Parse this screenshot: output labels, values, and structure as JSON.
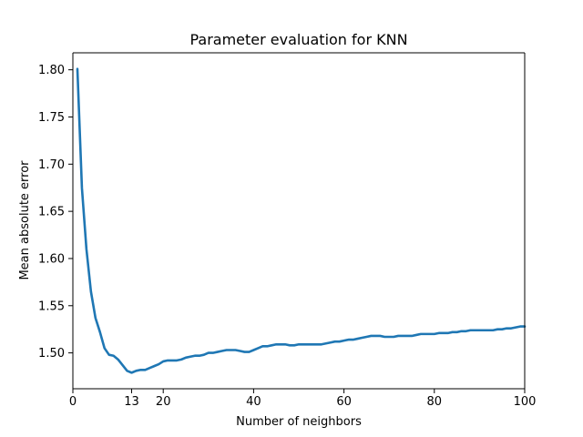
{
  "chart_data": {
    "type": "line",
    "title": "Parameter evaluation for KNN",
    "xlabel": "Number of neighbors",
    "ylabel": "Mean absolute error",
    "xlim": [
      0,
      100
    ],
    "ylim": [
      1.462,
      1.818
    ],
    "x_ticks": [
      0,
      13,
      20,
      40,
      60,
      80,
      100
    ],
    "x_tick_labels": [
      "0",
      "13",
      "20",
      "40",
      "60",
      "80",
      "100"
    ],
    "y_ticks": [
      1.5,
      1.55,
      1.6,
      1.65,
      1.7,
      1.75,
      1.8
    ],
    "y_tick_labels": [
      "1.50",
      "1.55",
      "1.60",
      "1.65",
      "1.70",
      "1.75",
      "1.80"
    ],
    "grid": false,
    "line_color": "#1f77b4",
    "series": [
      {
        "x": [
          1,
          2,
          3,
          4,
          5,
          6,
          7,
          8,
          9,
          10,
          11,
          12,
          13,
          14,
          15,
          16,
          17,
          18,
          19,
          20,
          21,
          22,
          23,
          24,
          25,
          26,
          27,
          28,
          29,
          30,
          31,
          32,
          33,
          34,
          35,
          36,
          37,
          38,
          39,
          40,
          41,
          42,
          43,
          44,
          45,
          46,
          47,
          48,
          49,
          50,
          51,
          52,
          53,
          54,
          55,
          56,
          57,
          58,
          59,
          60,
          61,
          62,
          63,
          64,
          65,
          66,
          67,
          68,
          69,
          70,
          71,
          72,
          73,
          74,
          75,
          76,
          77,
          78,
          79,
          80,
          81,
          82,
          83,
          84,
          85,
          86,
          87,
          88,
          89,
          90,
          91,
          92,
          93,
          94,
          95,
          96,
          97,
          98,
          99,
          100
        ],
        "values": [
          1.801,
          1.675,
          1.61,
          1.565,
          1.537,
          1.522,
          1.505,
          1.498,
          1.497,
          1.493,
          1.487,
          1.481,
          1.479,
          1.481,
          1.482,
          1.482,
          1.484,
          1.486,
          1.488,
          1.491,
          1.492,
          1.492,
          1.492,
          1.493,
          1.495,
          1.496,
          1.497,
          1.497,
          1.498,
          1.5,
          1.5,
          1.501,
          1.502,
          1.503,
          1.503,
          1.503,
          1.502,
          1.501,
          1.501,
          1.503,
          1.505,
          1.507,
          1.507,
          1.508,
          1.509,
          1.509,
          1.509,
          1.508,
          1.508,
          1.509,
          1.509,
          1.509,
          1.509,
          1.509,
          1.509,
          1.51,
          1.511,
          1.512,
          1.512,
          1.513,
          1.514,
          1.514,
          1.515,
          1.516,
          1.517,
          1.518,
          1.518,
          1.518,
          1.517,
          1.517,
          1.517,
          1.518,
          1.518,
          1.518,
          1.518,
          1.519,
          1.52,
          1.52,
          1.52,
          1.52,
          1.521,
          1.521,
          1.521,
          1.522,
          1.522,
          1.523,
          1.523,
          1.524,
          1.524,
          1.524,
          1.524,
          1.524,
          1.524,
          1.525,
          1.525,
          1.526,
          1.526,
          1.527,
          1.528,
          1.528
        ]
      }
    ]
  }
}
